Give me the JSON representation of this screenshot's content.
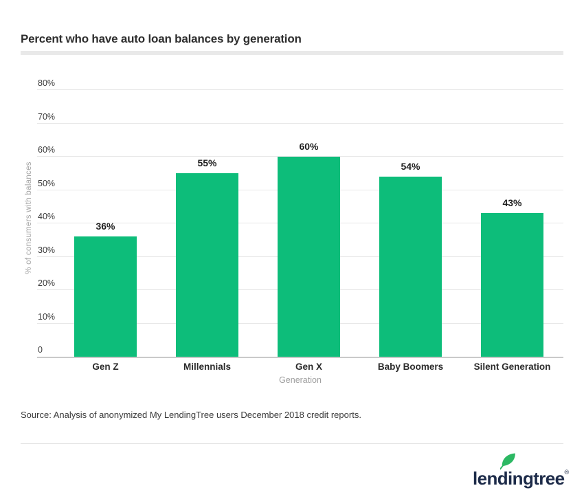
{
  "header": {
    "title": "Percent who have auto loan balances by generation"
  },
  "chart_data": {
    "type": "bar",
    "title": "Percent who have auto loan balances by generation",
    "categories": [
      "Gen Z",
      "Millennials",
      "Gen X",
      "Baby Boomers",
      "Silent Generation"
    ],
    "values": [
      36,
      55,
      60,
      54,
      43
    ],
    "bar_labels": [
      "36%",
      "55%",
      "60%",
      "54%",
      "43%"
    ],
    "xlabel": "Generation",
    "ylabel": "% of consumers with balances",
    "ylim": [
      0,
      85
    ],
    "yticks": [
      {
        "value": 0,
        "label": "0"
      },
      {
        "value": 10,
        "label": "10%"
      },
      {
        "value": 20,
        "label": "20%"
      },
      {
        "value": 30,
        "label": "30%"
      },
      {
        "value": 40,
        "label": "40%"
      },
      {
        "value": 50,
        "label": "50%"
      },
      {
        "value": 60,
        "label": "60%"
      },
      {
        "value": 70,
        "label": "70%"
      },
      {
        "value": 80,
        "label": "80%"
      }
    ],
    "grid": true,
    "legend": false,
    "bar_color": "#0dbd7a"
  },
  "source": {
    "text": "Source: Analysis of anonymized My LendingTree users December 2018 credit reports."
  },
  "footer": {
    "logo_text": "lendingtree",
    "registered_mark": "®",
    "leaf_icon": "leaf-icon"
  },
  "colors": {
    "bar_green": "#0dbd7a",
    "logo_navy": "#1d2b49",
    "leaf_green": "#2cb863",
    "grid_line": "#e7e7e7",
    "axis_line": "#c9c9c9",
    "title_divider": "#e9e9e9",
    "muted_text": "#9e9e9e",
    "dark_text": "#2e2e2e"
  }
}
